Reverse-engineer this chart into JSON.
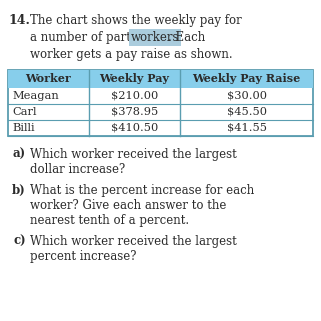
{
  "question_number": "14.",
  "line1": "The chart shows the weekly pay for",
  "line2a": "a number of part-time ",
  "line2b": "workers",
  "line2c": ". Each",
  "line3": "worker gets a pay raise as shown.",
  "highlight_color": "#aaccdd",
  "table_header": [
    "Worker",
    "Weekly Pay",
    "Weekly Pay Raise"
  ],
  "table_rows": [
    [
      "Meagan",
      "$210.00",
      "$30.00"
    ],
    [
      "Carl",
      "$378.95",
      "$45.50"
    ],
    [
      "Billi",
      "$410.50",
      "$41.55"
    ]
  ],
  "table_header_bg": "#87ceeb",
  "table_border_color": "#5a9db0",
  "questions": [
    {
      "label": "a)",
      "line1": "Which worker received the largest",
      "line2": "dollar increase?",
      "line3": null
    },
    {
      "label": "b)",
      "line1": "What is the percent increase for each",
      "line2": "worker? Give each answer to the",
      "line3": "nearest tenth of a percent."
    },
    {
      "label": "c)",
      "line1": "Which worker received the largest",
      "line2": "percent increase?",
      "line3": null
    }
  ],
  "bg_color": "#ffffff",
  "text_color": "#2b2b2b",
  "brown_color": "#8B4513"
}
